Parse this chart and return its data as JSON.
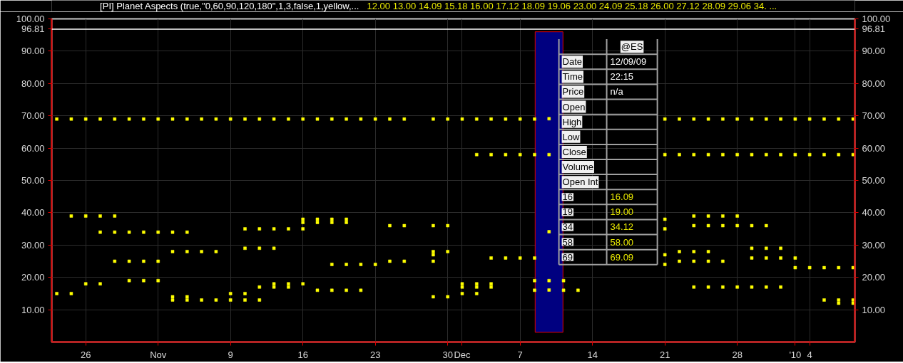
{
  "chart_data": {
    "type": "scatter",
    "title": "[PI] Planet Aspects (true,\"0,60,90,120,180\",1,3,false,1,yellow,...",
    "subtitle": "12.00  13.00  14.09  15.18  16.00  17.12  18.09  19.06  23.00  24.09  25.18  26.00  27.12  28.09  29.06  34. ...",
    "categories": [
      null,
      null,
      "26",
      null,
      null,
      null,
      null,
      "Nov",
      null,
      null,
      null,
      null,
      "9",
      null,
      null,
      null,
      null,
      "16",
      null,
      null,
      null,
      null,
      "23",
      null,
      null,
      null,
      null,
      "30",
      "Dec",
      null,
      null,
      null,
      "7",
      null,
      null,
      null,
      null,
      "14",
      null,
      null,
      null,
      null,
      "21",
      null,
      null,
      null,
      null,
      "28",
      null,
      null,
      null,
      "'10",
      "4",
      null,
      null,
      null
    ],
    "ylim": [
      0,
      100
    ],
    "yticks": [
      {
        "value": 10,
        "label": "10.00"
      },
      {
        "value": 20,
        "label": "20.00"
      },
      {
        "value": 30,
        "label": "30.00"
      },
      {
        "value": 40,
        "label": "40.00"
      },
      {
        "value": 50,
        "label": "50.00"
      },
      {
        "value": 60,
        "label": "60.00"
      },
      {
        "value": 70,
        "label": "70.00"
      },
      {
        "value": 80,
        "label": "80.00"
      },
      {
        "value": 90,
        "label": "90.00"
      },
      {
        "value": 100,
        "label": "100.00"
      }
    ],
    "y2lim": [
      0,
      100
    ],
    "y2ticks": [
      {
        "value": 10,
        "label": "10.00"
      },
      {
        "value": 20,
        "label": "20.00"
      },
      {
        "value": 30,
        "label": "30.00"
      },
      {
        "value": 40,
        "label": "40.00"
      },
      {
        "value": 50,
        "label": "50.00"
      },
      {
        "value": 60,
        "label": "60.00"
      },
      {
        "value": 70,
        "label": "70.00"
      },
      {
        "value": 80,
        "label": "80.00"
      },
      {
        "value": 90,
        "label": "90.00"
      },
      {
        "value": 100,
        "label": "100.00"
      }
    ],
    "grid": true,
    "marker": "square",
    "ref_lines": [
      {
        "axis": "y",
        "value": 96.81,
        "label": "96.81",
        "color": "#ffffff"
      }
    ],
    "annotations": [
      "@ES",
      "Date",
      "12/09/09",
      "Time",
      "22:15",
      "Price",
      "n/a",
      "Open",
      "High",
      "Low",
      "Close",
      "Volume",
      "Open Int",
      "16",
      "16.09",
      "19",
      "19.00",
      "34",
      "34.12",
      "58",
      "58.00",
      "69",
      "69.09"
    ],
    "series": [
      {
        "type": "bar",
        "color": "#000080",
        "base": [
          null,
          null,
          null,
          null,
          null,
          null,
          null,
          null,
          null,
          null,
          null,
          null,
          null,
          null,
          null,
          null,
          null,
          null,
          null,
          null,
          null,
          null,
          null,
          null,
          null,
          null,
          null,
          null,
          null,
          null,
          null,
          null,
          null,
          null,
          3,
          null,
          null,
          null,
          null,
          null,
          null,
          null,
          null,
          null,
          null,
          null,
          null,
          null,
          null,
          null,
          null,
          null,
          null,
          null,
          null,
          null
        ],
        "values": [
          null,
          null,
          null,
          null,
          null,
          null,
          null,
          null,
          null,
          null,
          null,
          null,
          null,
          null,
          null,
          null,
          null,
          null,
          null,
          null,
          null,
          null,
          null,
          null,
          null,
          null,
          null,
          null,
          null,
          null,
          null,
          null,
          null,
          null,
          93,
          null,
          null,
          null,
          null,
          null,
          null,
          null,
          null,
          null,
          null,
          null,
          null,
          null,
          null,
          null,
          null,
          null,
          null,
          null,
          null,
          null
        ]
      },
      {
        "color": "#ffff00",
        "values": [
          69,
          69,
          69,
          69,
          69,
          69,
          69,
          69,
          69,
          69,
          69,
          69,
          69,
          69,
          69,
          69,
          69,
          69,
          69,
          69,
          69,
          69,
          69,
          69,
          69,
          null,
          69,
          69,
          69,
          69,
          69,
          69,
          69,
          69,
          69.09,
          null,
          null,
          null,
          null,
          null,
          null,
          null,
          69,
          69,
          69,
          69,
          69,
          69,
          69,
          69,
          69,
          69,
          69,
          69,
          69,
          69
        ]
      },
      {
        "color": "#ffff00",
        "values": [
          null,
          null,
          null,
          null,
          null,
          null,
          null,
          null,
          null,
          null,
          null,
          null,
          null,
          null,
          null,
          null,
          null,
          null,
          null,
          null,
          null,
          null,
          null,
          null,
          null,
          null,
          null,
          null,
          null,
          58,
          58,
          58,
          58,
          58,
          58,
          null,
          null,
          null,
          null,
          null,
          null,
          null,
          58,
          58,
          58,
          58,
          58,
          58,
          58,
          58,
          58,
          58,
          58,
          58,
          58,
          58
        ]
      },
      {
        "color": "#ffff00",
        "values": [
          null,
          39,
          39,
          39,
          39,
          null,
          null,
          null,
          null,
          null,
          null,
          null,
          null,
          null,
          null,
          null,
          null,
          null,
          null,
          null,
          null,
          null,
          null,
          null,
          null,
          null,
          null,
          null,
          null,
          null,
          null,
          null,
          null,
          null,
          null,
          null,
          null,
          null,
          null,
          null,
          null,
          null,
          null,
          null,
          39,
          39,
          39,
          39,
          null,
          null,
          null,
          null,
          null,
          null,
          null,
          null
        ]
      },
      {
        "color": "#ffff00",
        "values": [
          null,
          null,
          null,
          null,
          null,
          null,
          null,
          null,
          null,
          null,
          null,
          null,
          null,
          null,
          null,
          null,
          null,
          38,
          38,
          38,
          38,
          null,
          null,
          null,
          null,
          null,
          null,
          null,
          null,
          null,
          null,
          null,
          null,
          null,
          null,
          null,
          null,
          null,
          null,
          null,
          null,
          null,
          38,
          null,
          null,
          null,
          null,
          null,
          null,
          null,
          null,
          null,
          null,
          null,
          null,
          null
        ]
      },
      {
        "color": "#ffff00",
        "values": [
          null,
          null,
          null,
          null,
          null,
          null,
          null,
          null,
          null,
          null,
          null,
          null,
          null,
          null,
          null,
          null,
          null,
          37,
          37,
          37,
          37,
          null,
          null,
          null,
          null,
          null,
          null,
          null,
          null,
          null,
          null,
          null,
          null,
          null,
          null,
          null,
          null,
          null,
          null,
          null,
          null,
          null,
          null,
          null,
          null,
          null,
          null,
          null,
          null,
          null,
          null,
          null,
          null,
          null,
          null,
          null
        ]
      },
      {
        "color": "#ffff00",
        "values": [
          null,
          null,
          null,
          null,
          null,
          null,
          null,
          null,
          null,
          null,
          null,
          null,
          null,
          null,
          null,
          null,
          null,
          null,
          null,
          null,
          null,
          null,
          null,
          36,
          36,
          null,
          36,
          36,
          null,
          null,
          null,
          null,
          null,
          null,
          null,
          null,
          null,
          null,
          null,
          null,
          null,
          null,
          null,
          null,
          36,
          36,
          36,
          36,
          36,
          36,
          null,
          null,
          null,
          null,
          null,
          null
        ]
      },
      {
        "color": "#ffff00",
        "values": [
          null,
          null,
          null,
          null,
          null,
          null,
          null,
          null,
          null,
          null,
          null,
          null,
          null,
          35,
          35,
          35,
          35,
          35,
          null,
          null,
          null,
          null,
          null,
          null,
          null,
          null,
          null,
          null,
          null,
          null,
          null,
          null,
          null,
          null,
          null,
          null,
          null,
          null,
          null,
          null,
          null,
          null,
          35,
          null,
          null,
          null,
          null,
          null,
          null,
          null,
          null,
          null,
          null,
          null,
          null,
          null
        ]
      },
      {
        "color": "#ffff00",
        "values": [
          null,
          null,
          null,
          34,
          34,
          34,
          34,
          34,
          34,
          34,
          null,
          null,
          null,
          null,
          null,
          null,
          null,
          null,
          null,
          null,
          null,
          null,
          null,
          null,
          null,
          null,
          null,
          null,
          null,
          null,
          null,
          null,
          null,
          null,
          34.12,
          null,
          null,
          null,
          null,
          null,
          null,
          null,
          null,
          null,
          null,
          null,
          null,
          null,
          null,
          null,
          null,
          null,
          null,
          null,
          null,
          null
        ]
      },
      {
        "color": "#ffff00",
        "values": [
          null,
          null,
          null,
          null,
          null,
          null,
          null,
          null,
          null,
          null,
          null,
          null,
          null,
          29,
          29,
          29,
          null,
          null,
          null,
          null,
          null,
          null,
          null,
          null,
          null,
          null,
          null,
          null,
          null,
          null,
          null,
          null,
          null,
          null,
          null,
          null,
          null,
          null,
          null,
          null,
          null,
          null,
          null,
          null,
          null,
          null,
          null,
          null,
          29,
          29,
          29,
          null,
          null,
          null,
          null,
          null
        ]
      },
      {
        "color": "#ffff00",
        "values": [
          null,
          null,
          null,
          null,
          null,
          null,
          null,
          null,
          28,
          28,
          28,
          28,
          null,
          null,
          null,
          null,
          null,
          null,
          null,
          null,
          null,
          null,
          null,
          null,
          null,
          null,
          28,
          28,
          null,
          null,
          null,
          null,
          null,
          null,
          null,
          null,
          null,
          null,
          null,
          null,
          null,
          null,
          null,
          28,
          28,
          28,
          null,
          null,
          null,
          null,
          null,
          null,
          null,
          null,
          null,
          null
        ]
      },
      {
        "color": "#ffff00",
        "values": [
          null,
          null,
          null,
          null,
          null,
          null,
          null,
          null,
          null,
          null,
          null,
          null,
          null,
          null,
          null,
          null,
          null,
          null,
          null,
          null,
          null,
          null,
          null,
          null,
          null,
          null,
          27,
          null,
          null,
          null,
          null,
          null,
          null,
          null,
          null,
          null,
          null,
          null,
          null,
          null,
          null,
          null,
          27,
          null,
          null,
          null,
          null,
          null,
          null,
          null,
          null,
          null,
          null,
          null,
          null,
          null
        ]
      },
      {
        "color": "#ffff00",
        "values": [
          null,
          null,
          null,
          null,
          null,
          null,
          null,
          null,
          null,
          null,
          null,
          null,
          null,
          null,
          null,
          null,
          null,
          null,
          null,
          null,
          null,
          null,
          null,
          null,
          null,
          null,
          null,
          null,
          null,
          null,
          26,
          26,
          26,
          26,
          null,
          null,
          null,
          null,
          null,
          null,
          null,
          null,
          null,
          null,
          null,
          null,
          null,
          null,
          26,
          26,
          26,
          26,
          null,
          null,
          null,
          null
        ]
      },
      {
        "color": "#ffff00",
        "values": [
          null,
          null,
          null,
          null,
          25,
          25,
          25,
          25,
          null,
          null,
          null,
          null,
          null,
          null,
          null,
          null,
          null,
          null,
          null,
          null,
          null,
          null,
          null,
          25,
          25,
          null,
          25,
          null,
          null,
          null,
          null,
          null,
          null,
          null,
          null,
          null,
          null,
          null,
          null,
          null,
          null,
          null,
          null,
          25,
          25,
          25,
          25,
          null,
          null,
          null,
          null,
          null,
          null,
          null,
          null,
          null
        ]
      },
      {
        "color": "#ffff00",
        "values": [
          null,
          null,
          null,
          null,
          null,
          null,
          null,
          null,
          null,
          null,
          null,
          null,
          null,
          null,
          null,
          null,
          null,
          null,
          null,
          24,
          24,
          24,
          24,
          null,
          null,
          null,
          null,
          null,
          null,
          null,
          null,
          null,
          null,
          null,
          null,
          null,
          null,
          null,
          null,
          null,
          null,
          null,
          24,
          null,
          null,
          null,
          null,
          null,
          null,
          null,
          null,
          null,
          null,
          null,
          null,
          null
        ]
      },
      {
        "color": "#ffff00",
        "values": [
          null,
          null,
          null,
          null,
          null,
          null,
          null,
          null,
          null,
          null,
          null,
          null,
          null,
          null,
          null,
          null,
          null,
          null,
          null,
          null,
          null,
          null,
          null,
          null,
          null,
          null,
          null,
          null,
          null,
          null,
          null,
          null,
          null,
          null,
          null,
          null,
          null,
          null,
          null,
          null,
          null,
          null,
          null,
          null,
          null,
          null,
          null,
          null,
          null,
          null,
          null,
          23,
          23,
          23,
          23,
          23
        ]
      },
      {
        "color": "#ffff00",
        "values": [
          null,
          null,
          null,
          null,
          null,
          19,
          19,
          19,
          null,
          null,
          null,
          null,
          null,
          null,
          null,
          null,
          null,
          null,
          null,
          null,
          null,
          null,
          null,
          null,
          null,
          null,
          null,
          null,
          null,
          null,
          null,
          null,
          null,
          19,
          19,
          19,
          null,
          null,
          null,
          null,
          null,
          null,
          null,
          null,
          null,
          null,
          null,
          null,
          null,
          null,
          null,
          null,
          null,
          null,
          null,
          null
        ]
      },
      {
        "color": "#ffff00",
        "values": [
          null,
          null,
          18,
          18,
          null,
          null,
          null,
          null,
          null,
          null,
          null,
          null,
          null,
          null,
          null,
          18,
          18,
          18,
          null,
          null,
          null,
          null,
          null,
          null,
          null,
          null,
          null,
          null,
          18,
          18,
          18,
          null,
          null,
          null,
          null,
          null,
          null,
          null,
          null,
          null,
          null,
          null,
          null,
          null,
          null,
          null,
          null,
          null,
          null,
          null,
          null,
          null,
          null,
          null,
          null,
          null
        ]
      },
      {
        "color": "#ffff00",
        "values": [
          null,
          null,
          null,
          null,
          null,
          null,
          null,
          null,
          null,
          null,
          null,
          null,
          null,
          null,
          17,
          17,
          17,
          null,
          null,
          null,
          null,
          null,
          null,
          null,
          null,
          null,
          null,
          null,
          17,
          17,
          17,
          null,
          null,
          null,
          null,
          null,
          null,
          null,
          null,
          null,
          null,
          null,
          null,
          null,
          17,
          17,
          17,
          17,
          17,
          17,
          17,
          null,
          null,
          null,
          null,
          null
        ]
      },
      {
        "color": "#ffff00",
        "values": [
          null,
          null,
          null,
          null,
          null,
          null,
          null,
          null,
          null,
          null,
          null,
          null,
          null,
          null,
          null,
          null,
          null,
          null,
          16,
          16,
          16,
          16,
          null,
          null,
          null,
          null,
          null,
          null,
          null,
          null,
          null,
          null,
          null,
          16,
          16.09,
          16,
          16,
          null,
          null,
          null,
          null,
          null,
          null,
          null,
          null,
          null,
          null,
          null,
          null,
          null,
          null,
          null,
          null,
          null,
          null,
          null
        ]
      },
      {
        "color": "#ffff00",
        "values": [
          15,
          15,
          null,
          null,
          null,
          null,
          null,
          null,
          null,
          null,
          null,
          null,
          15,
          15,
          null,
          null,
          null,
          null,
          null,
          null,
          null,
          null,
          null,
          null,
          null,
          null,
          null,
          null,
          15,
          15,
          null,
          null,
          null,
          null,
          null,
          null,
          null,
          null,
          null,
          null,
          null,
          null,
          null,
          null,
          null,
          null,
          null,
          null,
          null,
          null,
          null,
          null,
          null,
          null,
          null,
          null
        ]
      },
      {
        "color": "#ffff00",
        "values": [
          null,
          null,
          null,
          null,
          null,
          null,
          null,
          null,
          14,
          14,
          null,
          null,
          null,
          null,
          null,
          null,
          null,
          null,
          null,
          null,
          null,
          null,
          null,
          null,
          null,
          null,
          14,
          14,
          null,
          null,
          null,
          null,
          null,
          null,
          null,
          null,
          null,
          null,
          null,
          null,
          null,
          null,
          null,
          null,
          null,
          null,
          null,
          null,
          null,
          null,
          null,
          null,
          null,
          null,
          null,
          null
        ]
      },
      {
        "color": "#ffff00",
        "values": [
          null,
          null,
          null,
          null,
          null,
          null,
          null,
          null,
          13,
          13,
          13,
          13,
          13,
          13,
          13,
          null,
          null,
          null,
          null,
          null,
          null,
          null,
          null,
          null,
          null,
          null,
          null,
          null,
          null,
          null,
          null,
          null,
          null,
          null,
          null,
          null,
          null,
          null,
          null,
          null,
          null,
          null,
          null,
          null,
          null,
          null,
          null,
          null,
          null,
          null,
          null,
          null,
          null,
          13,
          13,
          13
        ]
      },
      {
        "color": "#ffff00",
        "values": [
          null,
          null,
          null,
          null,
          null,
          null,
          null,
          null,
          null,
          null,
          null,
          null,
          null,
          null,
          null,
          null,
          null,
          null,
          null,
          null,
          null,
          null,
          null,
          null,
          null,
          null,
          null,
          null,
          null,
          null,
          null,
          null,
          null,
          null,
          null,
          null,
          null,
          null,
          null,
          null,
          null,
          null,
          null,
          null,
          null,
          null,
          null,
          null,
          null,
          null,
          null,
          null,
          null,
          null,
          12,
          12
        ]
      }
    ]
  }
}
